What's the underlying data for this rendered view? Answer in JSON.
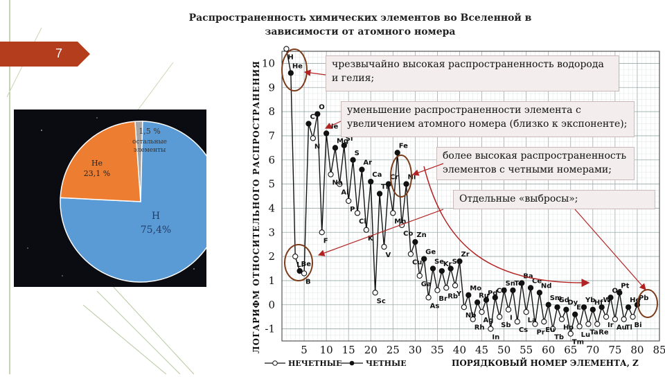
{
  "slide": {
    "number": "7",
    "title_line1": "Распространенность химических элементов во Вселенной в",
    "title_line2": "зависимости от атомного номера"
  },
  "pie": {
    "slices": [
      {
        "label": "H",
        "value_label": "75,4%",
        "value": 75.4,
        "color": "#5b9bd5"
      },
      {
        "label": "He",
        "value_label": "23,1 %",
        "value": 23.1,
        "color": "#ed7d31"
      },
      {
        "label_line1": "1,5 %",
        "label_line2": "остальные",
        "label_line3": "элементы",
        "value": 1.5,
        "color": "#a5a5a5"
      }
    ]
  },
  "callouts": [
    "чрезвычайно высокая распространенность водорода и гелия;",
    "уменьшение распространенности элемента с увеличением атомного номера (близко к экспоненте);",
    "более высокая распространенность элементов с четными номерами;",
    "Отдельные «выбросы»;"
  ],
  "chart_data": {
    "type": "line",
    "ylabel": "ЛОГАРИФМ ОТНОСИТЕЛЬНОГО РАСПРОСТРАНЕНИЯ",
    "xlabel": "ПОРЯДКОВЫЙ НОМЕР ЭЛЕМЕНТА, Z",
    "xlim": [
      0,
      85
    ],
    "ylim": [
      -1.5,
      10.5
    ],
    "x_ticks": [
      5,
      10,
      15,
      20,
      25,
      30,
      35,
      40,
      45,
      50,
      55,
      60,
      65,
      70,
      75,
      80,
      85
    ],
    "y_ticks": [
      -1,
      0,
      1,
      2,
      3,
      4,
      5,
      6,
      7,
      8,
      9,
      10
    ],
    "legend": [
      "НЕЧЕТНЫЕ",
      "ЧЕТНЫЕ"
    ],
    "series": [
      {
        "name": "НЕЧЕТНЫЕ",
        "points": [
          [
            1,
            10.6,
            "H"
          ],
          [
            3,
            2.0,
            "Li"
          ],
          [
            5,
            1.3,
            "B"
          ],
          [
            7,
            6.9,
            "N"
          ],
          [
            9,
            3.0,
            "F"
          ],
          [
            11,
            5.4,
            "Na"
          ],
          [
            13,
            5.0,
            "Al"
          ],
          [
            15,
            4.3,
            "P"
          ],
          [
            17,
            3.8,
            "Cl"
          ],
          [
            19,
            3.1,
            "K"
          ],
          [
            21,
            0.5,
            "Sc"
          ],
          [
            23,
            2.4,
            "V"
          ],
          [
            25,
            3.8,
            "Mn"
          ],
          [
            27,
            3.3,
            "Co"
          ],
          [
            29,
            2.1,
            "Cu"
          ],
          [
            31,
            1.2,
            "Ga"
          ],
          [
            33,
            0.3,
            "As"
          ],
          [
            35,
            0.6,
            "Br"
          ],
          [
            37,
            0.7,
            "Rb"
          ],
          [
            39,
            0.8,
            "Y"
          ],
          [
            41,
            -0.1,
            "Nb"
          ],
          [
            43,
            -0.6,
            "Rh"
          ],
          [
            45,
            -0.3,
            "Ag"
          ],
          [
            47,
            -1.0,
            "In"
          ],
          [
            49,
            -0.5,
            "Sb"
          ],
          [
            51,
            -0.2,
            "I"
          ],
          [
            53,
            -0.7,
            "Cs"
          ],
          [
            55,
            -0.3,
            "La"
          ],
          [
            57,
            -0.8,
            "Pr"
          ],
          [
            59,
            -0.7,
            "Eu"
          ],
          [
            61,
            -1.0,
            "Tb"
          ],
          [
            63,
            -0.6,
            "Ho"
          ],
          [
            65,
            -1.2,
            "Tm"
          ],
          [
            67,
            -0.9,
            "Lu"
          ],
          [
            69,
            -0.8,
            "Ta"
          ],
          [
            71,
            -0.8,
            "Re"
          ],
          [
            73,
            -0.5,
            "Ir"
          ],
          [
            75,
            -0.6,
            "Au"
          ],
          [
            77,
            -0.6,
            "Tl"
          ],
          [
            79,
            -0.5,
            "Bi"
          ]
        ]
      },
      {
        "name": "ЧЕТНЫЕ",
        "points": [
          [
            2,
            9.6,
            "He"
          ],
          [
            4,
            1.4,
            "Be"
          ],
          [
            6,
            7.5,
            "C"
          ],
          [
            8,
            7.9,
            "O"
          ],
          [
            10,
            7.1,
            "Ne"
          ],
          [
            12,
            6.5,
            "Mg"
          ],
          [
            14,
            6.6,
            "Si"
          ],
          [
            16,
            6.0,
            "S"
          ],
          [
            18,
            5.6,
            "Ar"
          ],
          [
            20,
            5.1,
            "Ca"
          ],
          [
            22,
            4.6,
            "Ti"
          ],
          [
            24,
            5.0,
            "Cr"
          ],
          [
            26,
            6.3,
            "Fe"
          ],
          [
            28,
            5.0,
            "Ni"
          ],
          [
            30,
            2.6,
            "Zn"
          ],
          [
            32,
            1.9,
            "Ge"
          ],
          [
            34,
            1.5,
            "Se"
          ],
          [
            36,
            1.4,
            "Kr"
          ],
          [
            38,
            1.5,
            "Sr"
          ],
          [
            40,
            1.8,
            "Zr"
          ],
          [
            42,
            0.4,
            "Mo"
          ],
          [
            44,
            0.1,
            "Ru"
          ],
          [
            46,
            0.2,
            "Pd"
          ],
          [
            48,
            0.3,
            "Cd"
          ],
          [
            50,
            0.6,
            "Sn"
          ],
          [
            52,
            0.6,
            "Te"
          ],
          [
            54,
            0.9,
            "Ba"
          ],
          [
            56,
            0.7,
            "Ce"
          ],
          [
            58,
            0.5,
            "Nd"
          ],
          [
            60,
            0.0,
            "Sm"
          ],
          [
            62,
            -0.1,
            "Gd"
          ],
          [
            64,
            -0.2,
            "Dy"
          ],
          [
            66,
            -0.4,
            "Er"
          ],
          [
            68,
            -0.1,
            "Yb"
          ],
          [
            70,
            -0.2,
            "Hf"
          ],
          [
            72,
            -0.1,
            "W"
          ],
          [
            74,
            0.3,
            "Os"
          ],
          [
            76,
            0.5,
            "Pt"
          ],
          [
            78,
            -0.1,
            "Hg"
          ],
          [
            80,
            0.0,
            "Pb"
          ]
        ]
      }
    ],
    "extra_labels": [
      [
        33,
        0.0,
        "Se"
      ],
      [
        35,
        1.3,
        "Ge"
      ],
      [
        49,
        -0.6,
        "Cd"
      ],
      [
        54,
        0.6,
        "Xe"
      ],
      [
        60,
        -0.4,
        "Sm"
      ],
      [
        64,
        -0.6,
        "Dy"
      ]
    ]
  }
}
